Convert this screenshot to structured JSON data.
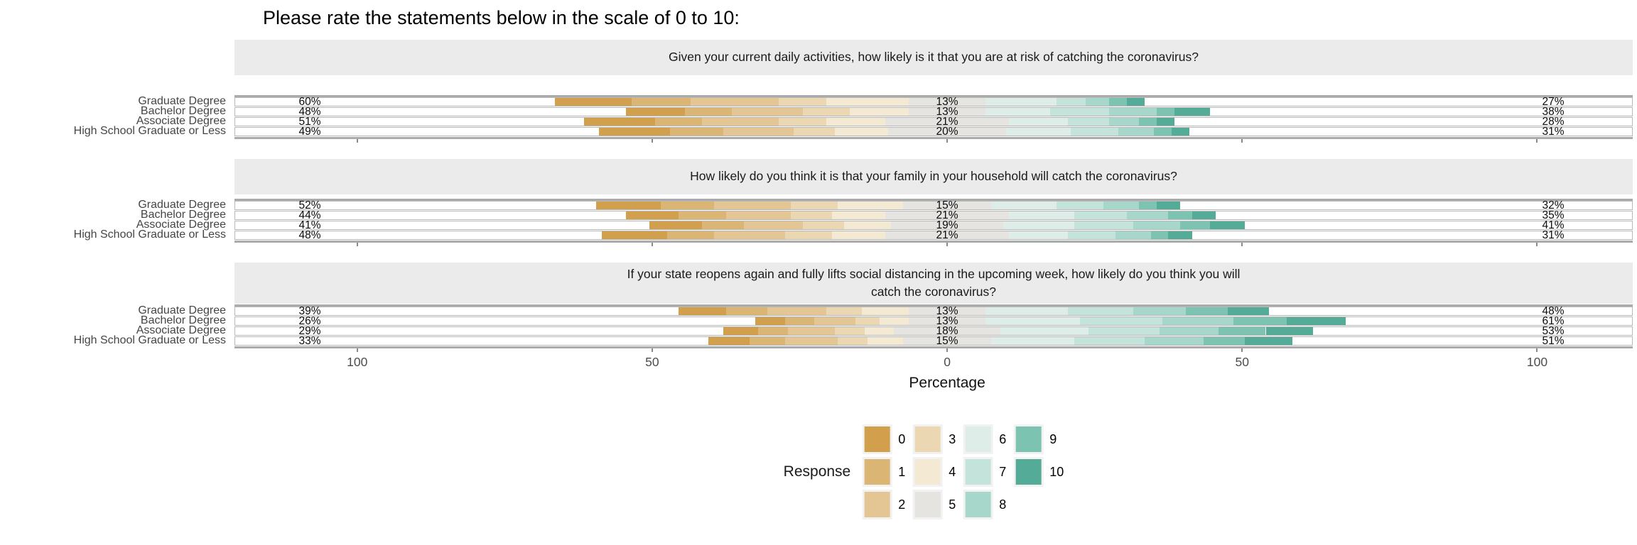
{
  "title": "Please rate the statements below in the scale of 0 to 10:",
  "axis": {
    "label": "Percentage",
    "tick_labels": [
      "100",
      "50",
      "0",
      "50",
      "100"
    ]
  },
  "legend": {
    "title": "Response"
  },
  "style_colors": {
    "strip_background": "#EBEBEB",
    "neutral": "#E6E4E1",
    "axis_text": "#4D4D4D"
  },
  "chart_data": {
    "type": "bar",
    "subtype": "diverging-stacked-likert",
    "title": "Please rate the statements below in the scale of 0 to 10:",
    "xlabel": "Percentage",
    "x_axis": {
      "ticks": [
        -100,
        -50,
        0,
        50,
        100
      ],
      "tick_labels": [
        "100",
        "50",
        "0",
        "50",
        "100"
      ]
    },
    "categories": [
      "Graduate Degree",
      "Bachelor Degree",
      "Associate Degree",
      "High School Graduate or Less"
    ],
    "response_scale": [
      "0",
      "1",
      "2",
      "3",
      "4",
      "5",
      "6",
      "7",
      "8",
      "9",
      "10"
    ],
    "neutral_response": "5",
    "colors": [
      "#D2A04C",
      "#DBB573",
      "#E3C693",
      "#EBD7B1",
      "#F4EAD3",
      "#E6E4E1",
      "#DEEDE8",
      "#C4E4DB",
      "#A6D7CA",
      "#7DC3B2",
      "#53AB98"
    ],
    "legend_columns": [
      [
        "0",
        "1",
        "2"
      ],
      [
        "3",
        "4",
        "5"
      ],
      [
        "6",
        "7",
        "8"
      ],
      [
        "9",
        "10"
      ]
    ],
    "panels": [
      {
        "question": "Given your current daily activities, how likely is it that you are at risk of catching the coronavirus?",
        "rows": [
          {
            "group": "Graduate Degree",
            "low_pct": 60,
            "neutral_pct": 13,
            "high_pct": 27,
            "low_label": "60%",
            "neutral_label": "13%",
            "high_label": "27%",
            "segments": [
              13,
              10,
              15,
              8,
              14,
              13,
              12,
              5,
              4,
              3,
              3
            ]
          },
          {
            "group": "Bachelor Degree",
            "low_pct": 48,
            "neutral_pct": 13,
            "high_pct": 38,
            "low_label": "48%",
            "neutral_label": "13%",
            "high_label": "38%",
            "segments": [
              10,
              8,
              12,
              8,
              10,
              13,
              11,
              10,
              8,
              3,
              6
            ]
          },
          {
            "group": "Associate Degree",
            "low_pct": 51,
            "neutral_pct": 21,
            "high_pct": 28,
            "low_label": "51%",
            "neutral_label": "21%",
            "high_label": "28%",
            "segments": [
              12,
              8,
              13,
              8,
              10,
              21,
              10,
              7,
              5,
              3,
              3
            ]
          },
          {
            "group": "High School Graduate or Less",
            "low_pct": 49,
            "neutral_pct": 20,
            "high_pct": 31,
            "low_label": "49%",
            "neutral_label": "20%",
            "high_label": "31%",
            "segments": [
              12,
              9,
              12,
              7,
              9,
              20,
              11,
              8,
              6,
              3,
              3
            ]
          }
        ]
      },
      {
        "question": "How likely do you think it is that your family in your household will catch the coronavirus?",
        "rows": [
          {
            "group": "Graduate Degree",
            "low_pct": 52,
            "neutral_pct": 15,
            "high_pct": 32,
            "low_label": "52%",
            "neutral_label": "15%",
            "high_label": "32%",
            "segments": [
              11,
              9,
              13,
              8,
              11,
              15,
              11,
              8,
              6,
              3,
              4
            ]
          },
          {
            "group": "Bachelor Degree",
            "low_pct": 44,
            "neutral_pct": 21,
            "high_pct": 35,
            "low_label": "44%",
            "neutral_label": "21%",
            "high_label": "35%",
            "segments": [
              9,
              8,
              11,
              7,
              9,
              21,
              11,
              9,
              7,
              4,
              4
            ]
          },
          {
            "group": "Associate Degree",
            "low_pct": 41,
            "neutral_pct": 19,
            "high_pct": 41,
            "low_label": "41%",
            "neutral_label": "19%",
            "high_label": "41%",
            "segments": [
              9,
              7,
              10,
              7,
              8,
              19,
              12,
              10,
              8,
              5,
              6
            ]
          },
          {
            "group": "High School Graduate or Less",
            "low_pct": 48,
            "neutral_pct": 21,
            "high_pct": 31,
            "low_label": "48%",
            "neutral_label": "21%",
            "high_label": "31%",
            "segments": [
              11,
              8,
              12,
              8,
              9,
              21,
              10,
              8,
              6,
              3,
              4
            ]
          }
        ]
      },
      {
        "question": "If your state reopens again and fully lifts social distancing in the upcoming week, how likely do you think you will\ncatch the coronavirus?",
        "rows": [
          {
            "group": "Graduate Degree",
            "low_pct": 39,
            "neutral_pct": 13,
            "high_pct": 48,
            "low_label": "39%",
            "neutral_label": "13%",
            "high_label": "48%",
            "segments": [
              8,
              7,
              10,
              6,
              8,
              13,
              14,
              11,
              9,
              7,
              7
            ]
          },
          {
            "group": "Bachelor Degree",
            "low_pct": 26,
            "neutral_pct": 13,
            "high_pct": 61,
            "low_label": "26%",
            "neutral_label": "13%",
            "high_label": "61%",
            "segments": [
              5,
              5,
              7,
              4,
              5,
              13,
              16,
              14,
              12,
              9,
              10
            ]
          },
          {
            "group": "Associate Degree",
            "low_pct": 29,
            "neutral_pct": 18,
            "high_pct": 53,
            "low_label": "29%",
            "neutral_label": "18%",
            "high_label": "53%",
            "segments": [
              6,
              5,
              8,
              5,
              5,
              18,
              15,
              12,
              10,
              8,
              8
            ]
          },
          {
            "group": "High School Graduate or Less",
            "low_pct": 33,
            "neutral_pct": 15,
            "high_pct": 51,
            "low_label": "33%",
            "neutral_label": "15%",
            "high_label": "51%",
            "segments": [
              7,
              6,
              9,
              5,
              6,
              15,
              14,
              12,
              10,
              7,
              8
            ]
          }
        ]
      }
    ]
  }
}
